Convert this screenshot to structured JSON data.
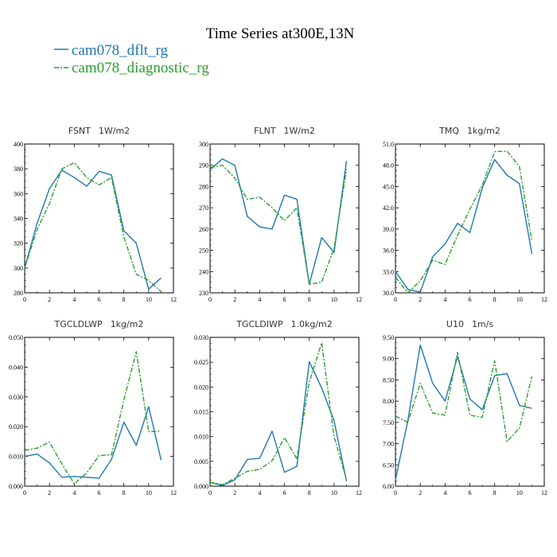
{
  "title": "Time Series at300E,13N",
  "legend": [
    {
      "name": "cam078_dflt_rg",
      "color": "#1f77b4"
    },
    {
      "name": "cam078_diagnostic_rg",
      "color": "#2ca02c"
    }
  ],
  "chart_data": [
    {
      "type": "line",
      "title": "FSNT",
      "units": "1W/m2",
      "x": [
        0,
        1,
        2,
        3,
        4,
        5,
        6,
        7,
        8,
        9,
        10,
        11
      ],
      "xlim": [
        0,
        12
      ],
      "xticks": [
        "0",
        "2",
        "4",
        "6",
        "8",
        "10",
        "12"
      ],
      "ylim": [
        280,
        400
      ],
      "yticks": [
        "280",
        "300",
        "320",
        "340",
        "360",
        "380",
        "400"
      ],
      "series": [
        {
          "name": "cam078_dflt_rg",
          "values": [
            300,
            336,
            364,
            379,
            373,
            366,
            378,
            375,
            330,
            320,
            283,
            292
          ]
        },
        {
          "name": "cam078_diagnostic_rg",
          "values": [
            300,
            331,
            352,
            380,
            385,
            373,
            367,
            373,
            325,
            295,
            290,
            281
          ]
        }
      ]
    },
    {
      "type": "line",
      "title": "FLNT",
      "units": "1W/m2",
      "x": [
        0,
        1,
        2,
        3,
        4,
        5,
        6,
        7,
        8,
        9,
        10,
        11
      ],
      "xlim": [
        0,
        12
      ],
      "xticks": [
        "0",
        "2",
        "4",
        "6",
        "8",
        "10",
        "12"
      ],
      "ylim": [
        230,
        300
      ],
      "yticks": [
        "230",
        "240",
        "250",
        "260",
        "270",
        "280",
        "290",
        "300"
      ],
      "series": [
        {
          "name": "cam078_dflt_rg",
          "values": [
            288,
            293,
            290,
            266,
            261,
            260,
            276,
            274,
            234,
            256,
            249,
            292
          ]
        },
        {
          "name": "cam078_diagnostic_rg",
          "values": [
            289,
            290,
            284,
            274,
            275,
            270,
            264,
            270,
            234,
            235,
            251,
            288
          ]
        }
      ]
    },
    {
      "type": "line",
      "title": "TMQ",
      "units": "1kg/m2",
      "x": [
        0,
        1,
        2,
        3,
        4,
        5,
        6,
        7,
        8,
        9,
        10,
        11
      ],
      "xlim": [
        0,
        12
      ],
      "xticks": [
        "0",
        "2",
        "4",
        "6",
        "8",
        "10",
        "12"
      ],
      "ylim": [
        30.0,
        51.0
      ],
      "yticks": [
        "30.0",
        "33.0",
        "36.0",
        "39.0",
        "42.0",
        "45.0",
        "48.0",
        "51.0"
      ],
      "series": [
        {
          "name": "cam078_dflt_rg",
          "values": [
            33.0,
            30.5,
            30.1,
            35.1,
            36.9,
            39.8,
            38.5,
            44.8,
            48.8,
            46.6,
            45.4,
            35.5
          ]
        },
        {
          "name": "cam078_diagnostic_rg",
          "values": [
            32.2,
            30.0,
            31.7,
            34.6,
            34.0,
            38.1,
            41.8,
            45.2,
            49.9,
            50.0,
            47.8,
            37.3
          ]
        }
      ]
    },
    {
      "type": "line",
      "title": "TGCLDLWP",
      "units": "1kg/m2",
      "x": [
        0,
        1,
        2,
        3,
        4,
        5,
        6,
        7,
        8,
        9,
        10,
        11
      ],
      "xlim": [
        0,
        12
      ],
      "xticks": [
        "0",
        "2",
        "4",
        "6",
        "8",
        "10",
        "12"
      ],
      "ylim": [
        0.0,
        0.05
      ],
      "yticks": [
        "0.000",
        "0.010",
        "0.020",
        "0.030",
        "0.040",
        "0.050"
      ],
      "series": [
        {
          "name": "cam078_dflt_rg",
          "values": [
            0.01,
            0.0108,
            0.0078,
            0.003,
            0.0033,
            0.003,
            0.0027,
            0.009,
            0.0215,
            0.0137,
            0.0267,
            0.0088
          ]
        },
        {
          "name": "cam078_diagnostic_rg",
          "values": [
            0.012,
            0.0128,
            0.0148,
            0.0075,
            0.0008,
            0.0045,
            0.0103,
            0.0105,
            0.029,
            0.0452,
            0.0183,
            0.0185
          ]
        }
      ]
    },
    {
      "type": "line",
      "title": "TGCLDIWP",
      "units": "1.0kg/m2",
      "x": [
        0,
        1,
        2,
        3,
        4,
        5,
        6,
        7,
        8,
        9,
        10,
        11
      ],
      "xlim": [
        0,
        12
      ],
      "xticks": [
        "0",
        "2",
        "4",
        "6",
        "8",
        "10",
        "12"
      ],
      "ylim": [
        0.0,
        0.03
      ],
      "yticks": [
        "0.000",
        "0.005",
        "0.010",
        "0.015",
        "0.020",
        "0.025",
        "0.030"
      ],
      "series": [
        {
          "name": "cam078_dflt_rg",
          "values": [
            0.0008,
            0.0001,
            0.0013,
            0.0054,
            0.0056,
            0.0111,
            0.0028,
            0.004,
            0.0251,
            0.0198,
            0.0132,
            0.001
          ]
        },
        {
          "name": "cam078_diagnostic_rg",
          "values": [
            0.0008,
            0.0003,
            0.0016,
            0.003,
            0.0034,
            0.0051,
            0.0098,
            0.0055,
            0.021,
            0.0289,
            0.01,
            0.0013
          ]
        }
      ]
    },
    {
      "type": "line",
      "title": "U10",
      "units": "1m/s",
      "x": [
        0,
        1,
        2,
        3,
        4,
        5,
        6,
        7,
        8,
        9,
        10,
        11
      ],
      "xlim": [
        0,
        12
      ],
      "xticks": [
        "0",
        "2",
        "4",
        "6",
        "8",
        "10",
        "12"
      ],
      "ylim": [
        6.0,
        9.5
      ],
      "yticks": [
        "6.00",
        "6.50",
        "7.00",
        "7.50",
        "8.00",
        "8.50",
        "9.00",
        "9.50"
      ],
      "series": [
        {
          "name": "cam078_dflt_rg",
          "values": [
            6.15,
            7.55,
            9.32,
            8.42,
            8.0,
            9.05,
            8.05,
            7.8,
            8.6,
            8.65,
            7.9,
            7.83
          ]
        },
        {
          "name": "cam078_diagnostic_rg",
          "values": [
            7.65,
            7.5,
            8.42,
            7.72,
            7.67,
            9.15,
            7.67,
            7.62,
            8.95,
            7.05,
            7.37,
            8.58
          ]
        }
      ]
    }
  ]
}
